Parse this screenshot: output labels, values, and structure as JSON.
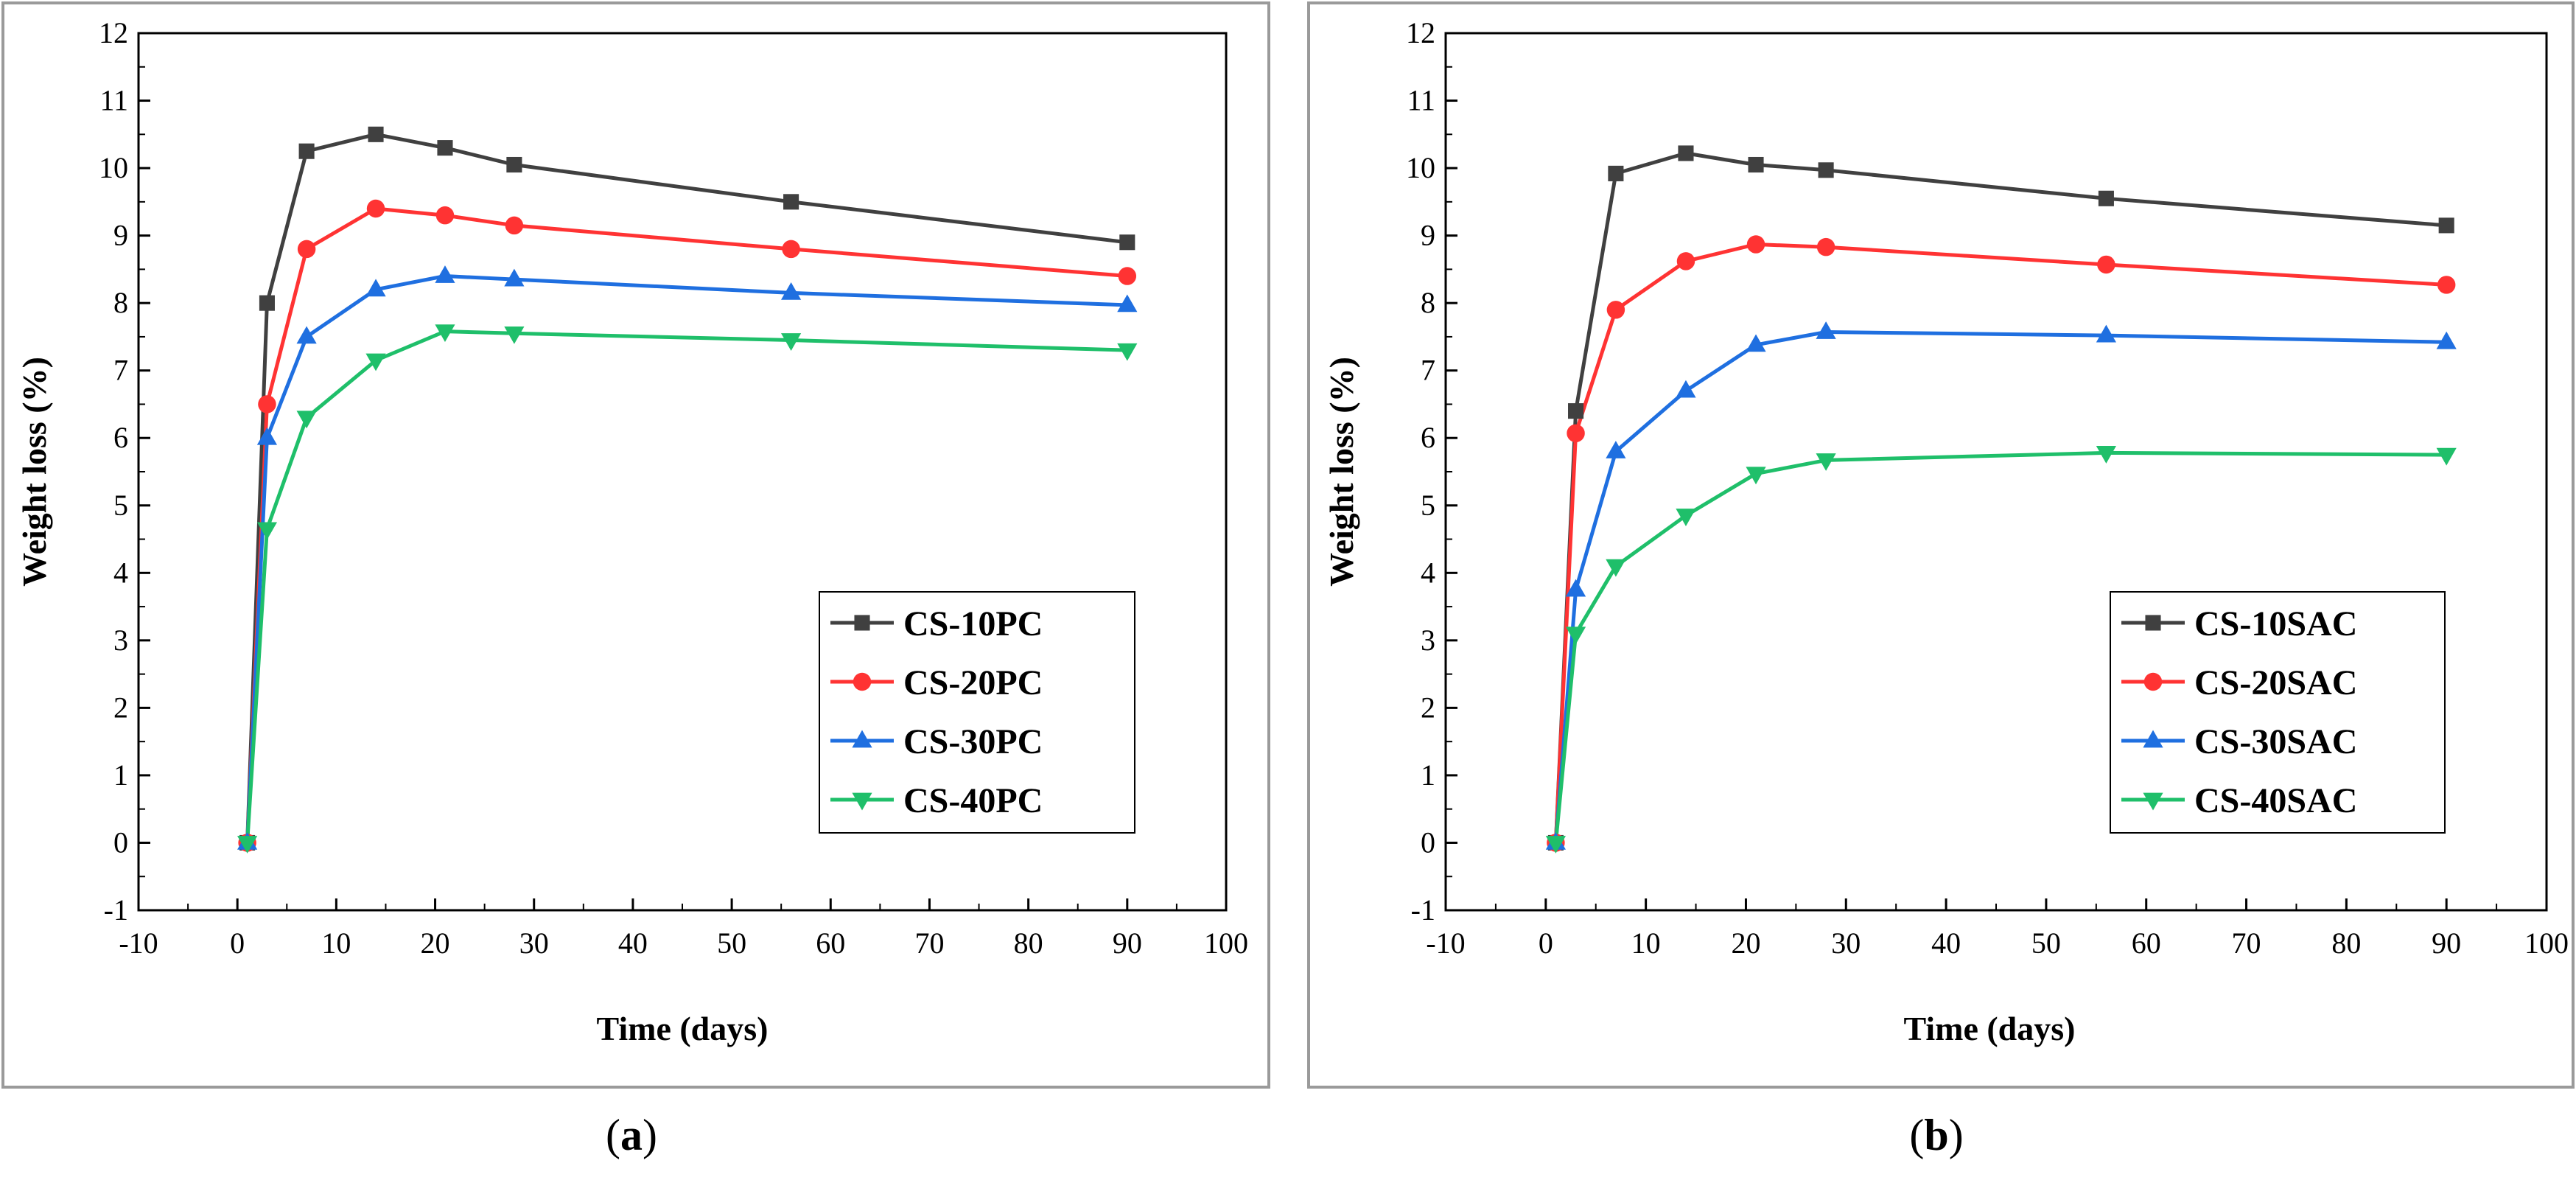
{
  "chart_data": [
    {
      "type": "line",
      "panel_label": "(a)",
      "panel_label_parts": {
        "open": "(",
        "letter": "a",
        "close": ")"
      },
      "xlabel": "Time (days)",
      "ylabel": "Weight loss (%)",
      "xlim": [
        -10,
        100
      ],
      "ylim": [
        -1,
        12
      ],
      "xticks": [
        -10,
        0,
        10,
        20,
        30,
        40,
        50,
        60,
        70,
        80,
        90,
        100
      ],
      "yticks": [
        -1,
        0,
        1,
        2,
        3,
        4,
        5,
        6,
        7,
        8,
        9,
        10,
        11,
        12
      ],
      "legend_position": "lower-right",
      "x": [
        1,
        3,
        7,
        14,
        21,
        28,
        56,
        90
      ],
      "series": [
        {
          "name": "CS-10PC",
          "color": "#404040",
          "marker": "square",
          "values": [
            0,
            8.0,
            10.25,
            10.5,
            10.3,
            10.05,
            9.5,
            8.9
          ]
        },
        {
          "name": "CS-20PC",
          "color": "#ff3333",
          "marker": "circle",
          "values": [
            0,
            6.5,
            8.8,
            9.4,
            9.3,
            9.15,
            8.8,
            8.4
          ]
        },
        {
          "name": "CS-30PC",
          "color": "#1f6fe0",
          "marker": "triangle-up",
          "values": [
            0,
            6.0,
            7.5,
            8.2,
            8.4,
            8.35,
            8.15,
            7.97
          ]
        },
        {
          "name": "CS-40PC",
          "color": "#1fbf6a",
          "marker": "triangle-down",
          "values": [
            0,
            4.65,
            6.3,
            7.15,
            7.58,
            7.55,
            7.45,
            7.3
          ]
        }
      ]
    },
    {
      "type": "line",
      "panel_label": "(b)",
      "panel_label_parts": {
        "open": "(",
        "letter": "b",
        "close": ")"
      },
      "xlabel": "Time (days)",
      "ylabel": "Weight loss (%)",
      "xlim": [
        -10,
        100
      ],
      "ylim": [
        -1,
        12
      ],
      "xticks": [
        -10,
        0,
        10,
        20,
        30,
        40,
        50,
        60,
        70,
        80,
        90,
        100
      ],
      "yticks": [
        -1,
        0,
        1,
        2,
        3,
        4,
        5,
        6,
        7,
        8,
        9,
        10,
        11,
        12
      ],
      "legend_position": "lower-right",
      "x": [
        1,
        3,
        7,
        14,
        21,
        28,
        56,
        90
      ],
      "series": [
        {
          "name": "CS-10SAC",
          "color": "#404040",
          "marker": "square",
          "values": [
            0,
            6.4,
            9.92,
            10.22,
            10.05,
            9.97,
            9.55,
            9.15
          ]
        },
        {
          "name": "CS-20SAC",
          "color": "#ff3333",
          "marker": "circle",
          "values": [
            0,
            6.07,
            7.9,
            8.62,
            8.87,
            8.83,
            8.57,
            8.27
          ]
        },
        {
          "name": "CS-30SAC",
          "color": "#1f6fe0",
          "marker": "triangle-up",
          "values": [
            0,
            3.75,
            5.8,
            6.7,
            7.38,
            7.57,
            7.52,
            7.42
          ]
        },
        {
          "name": "CS-40SAC",
          "color": "#1fbf6a",
          "marker": "triangle-down",
          "values": [
            0,
            3.1,
            4.1,
            4.85,
            5.47,
            5.67,
            5.78,
            5.75
          ]
        }
      ]
    }
  ]
}
